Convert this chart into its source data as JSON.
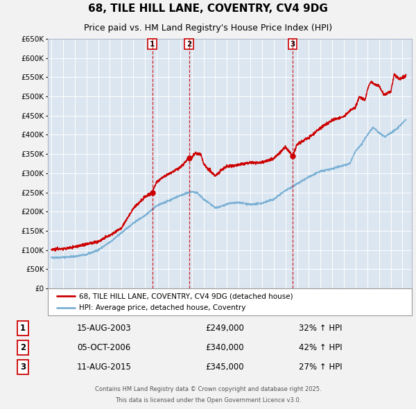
{
  "title": "68, TILE HILL LANE, COVENTRY, CV4 9DG",
  "subtitle": "Price paid vs. HM Land Registry's House Price Index (HPI)",
  "title_fontsize": 11,
  "subtitle_fontsize": 9,
  "bg_color": "#f2f2f2",
  "plot_bg_color": "#dce6f1",
  "grid_color": "#ffffff",
  "red_color": "#cc0000",
  "blue_color": "#7ab0d4",
  "ylim": [
    0,
    650000
  ],
  "yticks": [
    0,
    50000,
    100000,
    150000,
    200000,
    250000,
    300000,
    350000,
    400000,
    450000,
    500000,
    550000,
    600000,
    650000
  ],
  "ytick_labels": [
    "£0",
    "£50K",
    "£100K",
    "£150K",
    "£200K",
    "£250K",
    "£300K",
    "£350K",
    "£400K",
    "£450K",
    "£500K",
    "£550K",
    "£600K",
    "£650K"
  ],
  "sale_points": [
    {
      "num": 1,
      "date": "15-AUG-2003",
      "price": 249000,
      "pct": "32%",
      "x": 2003.62
    },
    {
      "num": 2,
      "date": "05-OCT-2006",
      "price": 340000,
      "pct": "42%",
      "x": 2006.76
    },
    {
      "num": 3,
      "date": "11-AUG-2015",
      "price": 345000,
      "pct": "27%",
      "x": 2015.61
    }
  ],
  "legend_entries": [
    {
      "label": "68, TILE HILL LANE, COVENTRY, CV4 9DG (detached house)",
      "color": "#cc0000"
    },
    {
      "label": "HPI: Average price, detached house, Coventry",
      "color": "#7ab0d4"
    }
  ],
  "footer_lines": [
    "Contains HM Land Registry data © Crown copyright and database right 2025.",
    "This data is licensed under the Open Government Licence v3.0."
  ]
}
